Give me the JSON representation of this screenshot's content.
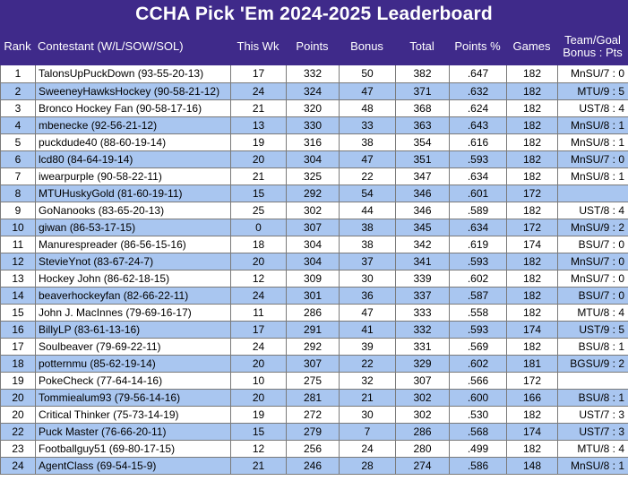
{
  "title": "CCHA Pick 'Em 2024-2025 Leaderboard",
  "headers": {
    "rank": "Rank",
    "contestant": "Contestant (W/L/SOW/SOL)",
    "this_wk": "This Wk",
    "points": "Points",
    "bonus": "Bonus",
    "total": "Total",
    "points_pct": "Points %",
    "games": "Games",
    "team_goal_line1": "Team/Goal",
    "team_goal_line2": "Bonus : Pts"
  },
  "colors": {
    "header_bg": "#3f2a8a",
    "alt_row_bg": "#a9c6f0",
    "border": "#7a7a7a"
  },
  "rows": [
    {
      "rank": "1",
      "name": "TalonsUpPuckDown (93-55-20-13)",
      "wk": "17",
      "pts": "332",
      "bonus": "50",
      "total": "382",
      "pct": ".647",
      "games": "182",
      "team": "MnSU/7 : 0"
    },
    {
      "rank": "2",
      "name": "SweeneyHawksHockey (90-58-21-12)",
      "wk": "24",
      "pts": "324",
      "bonus": "47",
      "total": "371",
      "pct": ".632",
      "games": "182",
      "team": "MTU/9 : 5"
    },
    {
      "rank": "3",
      "name": "Bronco Hockey Fan (90-58-17-16)",
      "wk": "21",
      "pts": "320",
      "bonus": "48",
      "total": "368",
      "pct": ".624",
      "games": "182",
      "team": "UST/8 : 4"
    },
    {
      "rank": "4",
      "name": "mbenecke (92-56-21-12)",
      "wk": "13",
      "pts": "330",
      "bonus": "33",
      "total": "363",
      "pct": ".643",
      "games": "182",
      "team": "MnSU/8 : 1"
    },
    {
      "rank": "5",
      "name": "puckdude40 (88-60-19-14)",
      "wk": "19",
      "pts": "316",
      "bonus": "38",
      "total": "354",
      "pct": ".616",
      "games": "182",
      "team": "MnSU/8 : 1"
    },
    {
      "rank": "6",
      "name": "lcd80 (84-64-19-14)",
      "wk": "20",
      "pts": "304",
      "bonus": "47",
      "total": "351",
      "pct": ".593",
      "games": "182",
      "team": "MnSU/7 : 0"
    },
    {
      "rank": "7",
      "name": "iwearpurple (90-58-22-11)",
      "wk": "21",
      "pts": "325",
      "bonus": "22",
      "total": "347",
      "pct": ".634",
      "games": "182",
      "team": "MnSU/8 : 1"
    },
    {
      "rank": "8",
      "name": "MTUHuskyGold (81-60-19-11)",
      "wk": "15",
      "pts": "292",
      "bonus": "54",
      "total": "346",
      "pct": ".601",
      "games": "172",
      "team": ""
    },
    {
      "rank": "9",
      "name": "GoNanooks (83-65-20-13)",
      "wk": "25",
      "pts": "302",
      "bonus": "44",
      "total": "346",
      "pct": ".589",
      "games": "182",
      "team": "UST/8 : 4"
    },
    {
      "rank": "10",
      "name": "giwan (86-53-17-15)",
      "wk": "0",
      "pts": "307",
      "bonus": "38",
      "total": "345",
      "pct": ".634",
      "games": "172",
      "team": "MnSU/9 : 2"
    },
    {
      "rank": "11",
      "name": "Manurespreader (86-56-15-16)",
      "wk": "18",
      "pts": "304",
      "bonus": "38",
      "total": "342",
      "pct": ".619",
      "games": "174",
      "team": "BSU/7 : 0"
    },
    {
      "rank": "12",
      "name": "StevieYnot (83-67-24-7)",
      "wk": "20",
      "pts": "304",
      "bonus": "37",
      "total": "341",
      "pct": ".593",
      "games": "182",
      "team": "MnSU/7 : 0"
    },
    {
      "rank": "13",
      "name": "Hockey John (86-62-18-15)",
      "wk": "12",
      "pts": "309",
      "bonus": "30",
      "total": "339",
      "pct": ".602",
      "games": "182",
      "team": "MnSU/7 : 0"
    },
    {
      "rank": "14",
      "name": "beaverhockeyfan (82-66-22-11)",
      "wk": "24",
      "pts": "301",
      "bonus": "36",
      "total": "337",
      "pct": ".587",
      "games": "182",
      "team": "BSU/7 : 0"
    },
    {
      "rank": "15",
      "name": "John J. MacInnes (79-69-16-17)",
      "wk": "11",
      "pts": "286",
      "bonus": "47",
      "total": "333",
      "pct": ".558",
      "games": "182",
      "team": "MTU/8 : 4"
    },
    {
      "rank": "16",
      "name": "BillyLP (83-61-13-16)",
      "wk": "17",
      "pts": "291",
      "bonus": "41",
      "total": "332",
      "pct": ".593",
      "games": "174",
      "team": "UST/9 : 5"
    },
    {
      "rank": "17",
      "name": "Soulbeaver (79-69-22-11)",
      "wk": "24",
      "pts": "292",
      "bonus": "39",
      "total": "331",
      "pct": ".569",
      "games": "182",
      "team": "BSU/8 : 1"
    },
    {
      "rank": "18",
      "name": "potternmu (85-62-19-14)",
      "wk": "20",
      "pts": "307",
      "bonus": "22",
      "total": "329",
      "pct": ".602",
      "games": "181",
      "team": "BGSU/9 : 2"
    },
    {
      "rank": "19",
      "name": "PokeCheck (77-64-14-16)",
      "wk": "10",
      "pts": "275",
      "bonus": "32",
      "total": "307",
      "pct": ".566",
      "games": "172",
      "team": ""
    },
    {
      "rank": "20",
      "name": "Tommiealum93 (79-56-14-16)",
      "wk": "20",
      "pts": "281",
      "bonus": "21",
      "total": "302",
      "pct": ".600",
      "games": "166",
      "team": "BSU/8 : 1"
    },
    {
      "rank": "20",
      "name": "Critical Thinker (75-73-14-19)",
      "wk": "19",
      "pts": "272",
      "bonus": "30",
      "total": "302",
      "pct": ".530",
      "games": "182",
      "team": "UST/7 : 3"
    },
    {
      "rank": "22",
      "name": "Puck Master (76-66-20-11)",
      "wk": "15",
      "pts": "279",
      "bonus": "7",
      "total": "286",
      "pct": ".568",
      "games": "174",
      "team": "UST/7 : 3"
    },
    {
      "rank": "23",
      "name": "Footballguy51 (69-80-17-15)",
      "wk": "12",
      "pts": "256",
      "bonus": "24",
      "total": "280",
      "pct": ".499",
      "games": "182",
      "team": "MTU/8 : 4"
    },
    {
      "rank": "24",
      "name": "AgentClass (69-54-15-9)",
      "wk": "21",
      "pts": "246",
      "bonus": "28",
      "total": "274",
      "pct": ".586",
      "games": "148",
      "team": "MnSU/8 : 1"
    }
  ]
}
